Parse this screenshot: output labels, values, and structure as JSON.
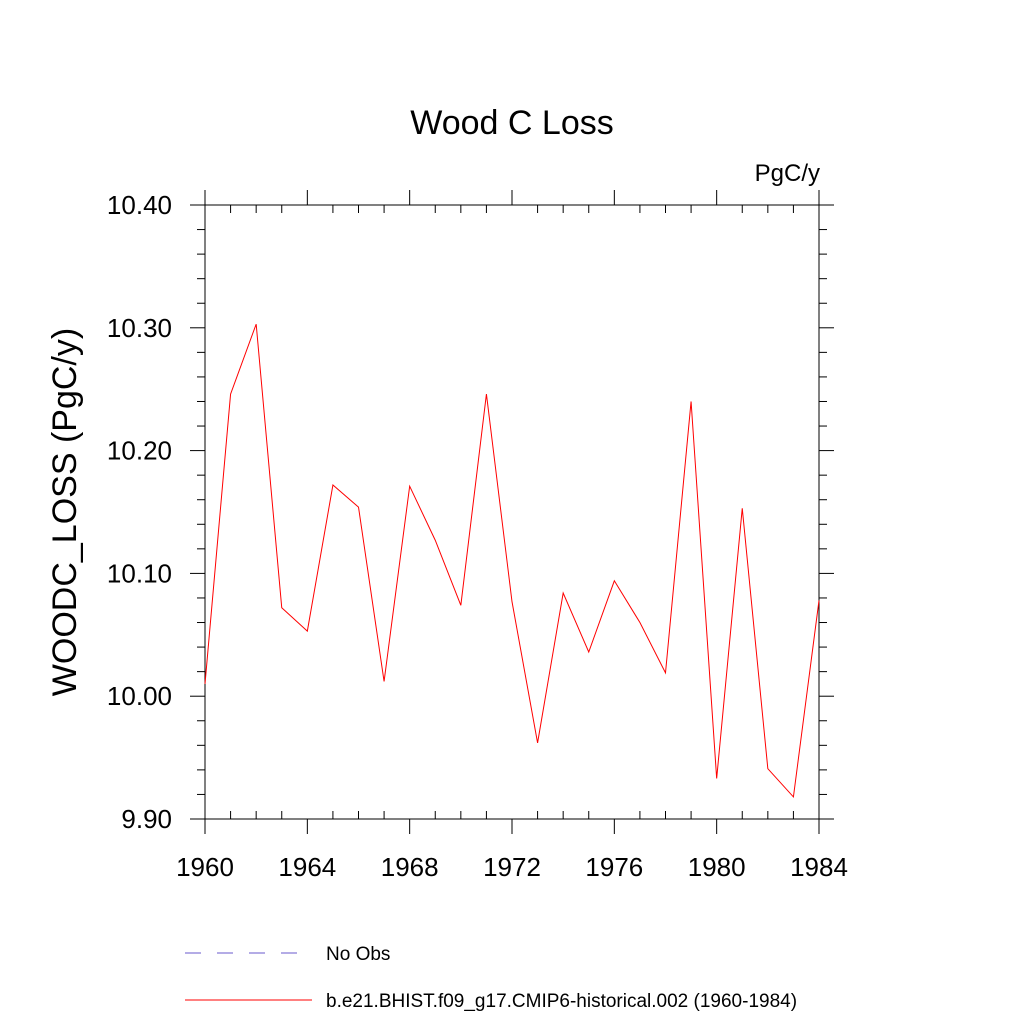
{
  "chart_data": {
    "type": "line",
    "title": "Wood C Loss",
    "units": "PgC/y",
    "ylabel": "WOODC_LOSS  (PgC/y)",
    "xlabel": "",
    "xlim": [
      1960,
      1984
    ],
    "ylim": [
      9.9,
      10.4
    ],
    "x_ticks": [
      1960,
      1964,
      1968,
      1972,
      1976,
      1980,
      1984
    ],
    "x_tick_labels": [
      "1960",
      "1964",
      "1968",
      "1972",
      "1976",
      "1980",
      "1984"
    ],
    "y_ticks": [
      9.9,
      10.0,
      10.1,
      10.2,
      10.3,
      10.4
    ],
    "y_tick_labels": [
      "9.90",
      "10.00",
      "10.10",
      "10.20",
      "10.30",
      "10.40"
    ],
    "x_minor_step": 1,
    "y_minor_step": 0.02,
    "grid": false,
    "legend_position": "bottom",
    "series": [
      {
        "name": "b.e21.BHIST.f09_g17.CMIP6-historical.002 (1960-1984)",
        "color": "#ff0000",
        "style": "solid",
        "x": [
          1960,
          1961,
          1962,
          1963,
          1964,
          1965,
          1966,
          1967,
          1968,
          1969,
          1970,
          1971,
          1972,
          1973,
          1974,
          1975,
          1976,
          1977,
          1978,
          1979,
          1980,
          1981,
          1982,
          1983,
          1984
        ],
        "values": [
          10.01,
          10.246,
          10.303,
          10.072,
          10.053,
          10.172,
          10.154,
          10.012,
          10.171,
          10.127,
          10.074,
          10.246,
          10.077,
          9.962,
          10.084,
          10.036,
          10.094,
          10.06,
          10.019,
          10.24,
          9.933,
          10.153,
          9.941,
          9.918,
          10.078
        ]
      }
    ],
    "legend": [
      {
        "label": "No Obs",
        "color": "#6a5acd",
        "style": "dashed"
      },
      {
        "label": "b.e21.BHIST.f09_g17.CMIP6-historical.002 (1960-1984)",
        "color": "#ff0000",
        "style": "solid"
      }
    ]
  }
}
